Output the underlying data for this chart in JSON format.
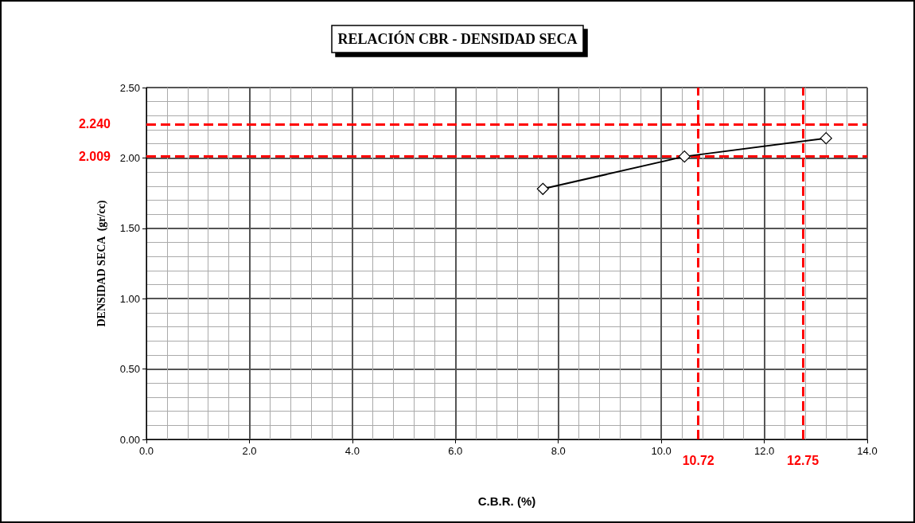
{
  "chart_data": {
    "type": "line",
    "title": "RELACIÓN CBR - DENSIDAD SECA",
    "xlabel": "C.B.R. (%)",
    "ylabel": "DENSIDAD SECA  (gr/cc)",
    "x": [
      7.7,
      10.45,
      13.2
    ],
    "series": [
      {
        "color": "#000000",
        "values": [
          1.78,
          2.01,
          2.14
        ]
      }
    ],
    "xlim": [
      0,
      14
    ],
    "ylim": [
      0,
      2.5
    ],
    "xticks": [
      {
        "value": 0,
        "label": "0.0"
      },
      {
        "value": 2,
        "label": "2.0"
      },
      {
        "value": 4,
        "label": "4.0"
      },
      {
        "value": 6,
        "label": "6.0"
      },
      {
        "value": 8,
        "label": "8.0"
      },
      {
        "value": 10,
        "label": "10.0"
      },
      {
        "value": 12,
        "label": "12.0"
      },
      {
        "value": 14,
        "label": "14.0"
      }
    ],
    "yticks": [
      {
        "value": 0,
        "label": "0.00"
      },
      {
        "value": 0.5,
        "label": "0.50"
      },
      {
        "value": 1,
        "label": "1.00"
      },
      {
        "value": 1.5,
        "label": "1.50"
      },
      {
        "value": 2,
        "label": "2.00"
      },
      {
        "value": 2.5,
        "label": "2.50"
      }
    ],
    "ref_lines": [
      {
        "axis": "y",
        "value": 2.24,
        "label": "2.240",
        "color": "#ff0000",
        "line_style": "dashed"
      },
      {
        "axis": "y",
        "value": 2.009,
        "label": "2.009",
        "color": "#ff0000",
        "line_style": "dashed"
      },
      {
        "axis": "x",
        "value": 10.72,
        "label": "10.72",
        "color": "#ff0000",
        "line_style": "dashed"
      },
      {
        "axis": "x",
        "value": 12.75,
        "label": "12.75",
        "color": "#ff0000",
        "line_style": "dashed"
      }
    ],
    "grid": true,
    "marker": "diamond",
    "line_style": "solid"
  }
}
